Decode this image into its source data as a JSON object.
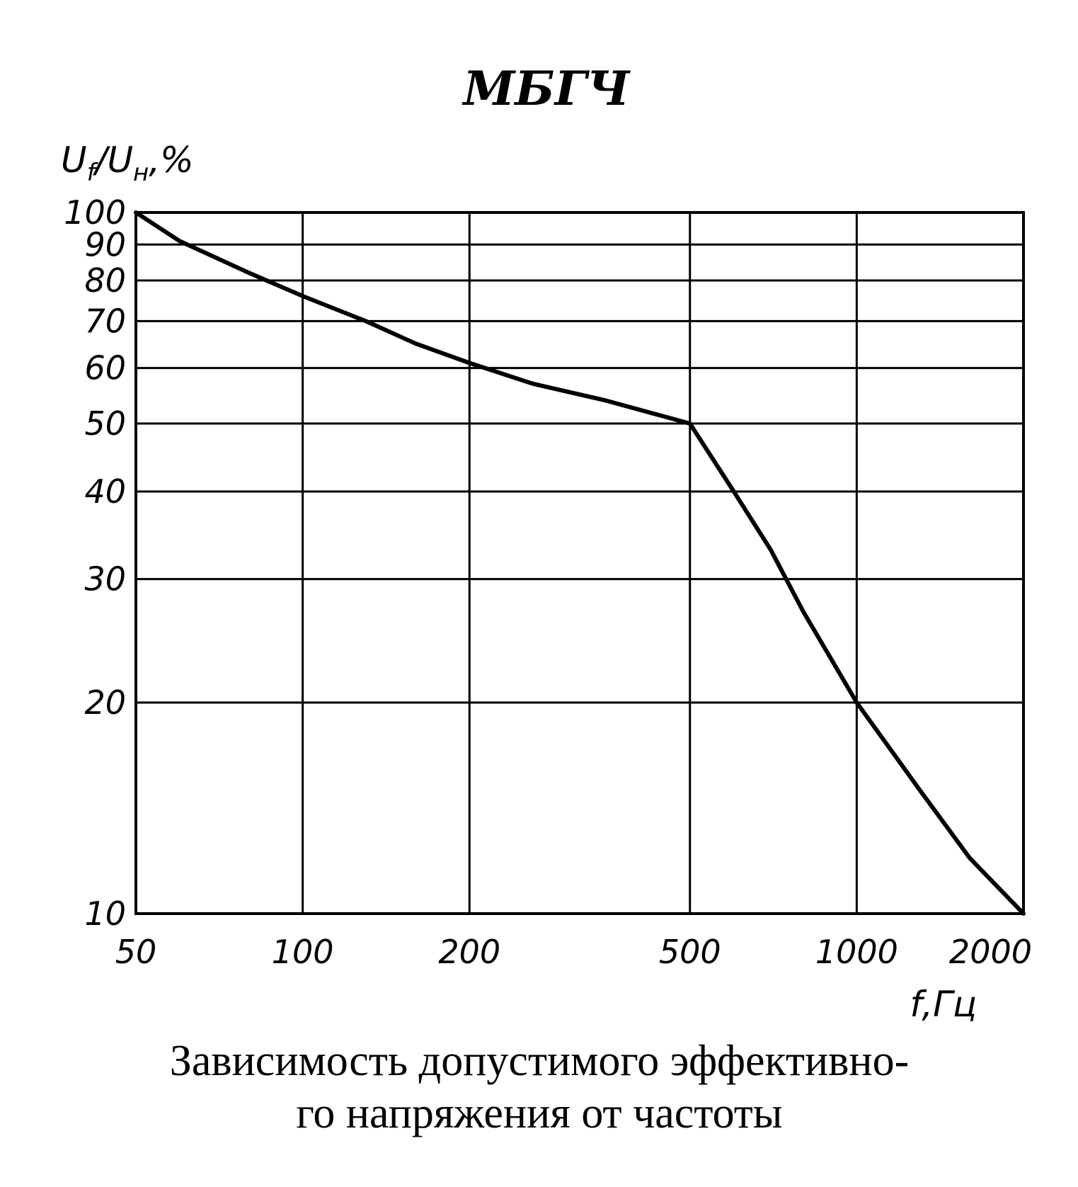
{
  "chart_data": {
    "type": "line",
    "title": "МБГЧ",
    "ylabel": {
      "main": "U",
      "sub1": "f",
      "sep": "/U",
      "sub2": "н",
      "unit": ",%"
    },
    "xlabel": "f,Гц",
    "x_scale": "log",
    "y_scale": "log",
    "xlim": [
      50,
      2000
    ],
    "ylim": [
      10,
      100
    ],
    "grid": true,
    "x_ticks": [
      50,
      100,
      200,
      500,
      1000,
      2000
    ],
    "x_tick_labels": [
      "50",
      "100",
      "200",
      "500",
      "1000",
      "2000"
    ],
    "y_ticks": [
      10,
      20,
      30,
      40,
      50,
      60,
      70,
      80,
      90,
      100
    ],
    "y_tick_labels": [
      "10",
      "20",
      "30",
      "40",
      "50",
      "60",
      "70",
      "80",
      "90",
      "100"
    ],
    "series": [
      {
        "x": [
          50,
          60,
          80,
          100,
          130,
          160,
          200,
          260,
          350,
          500,
          600,
          700,
          800,
          1000,
          1300,
          1600,
          2000
        ],
        "y": [
          100,
          91,
          82,
          76,
          70,
          65,
          61,
          57,
          54,
          50,
          40,
          33,
          27,
          20,
          15,
          12,
          10
        ]
      }
    ]
  },
  "caption": {
    "line1": "Зависимость допустимого эффективно-",
    "line2": "го напряжения от частоты"
  }
}
